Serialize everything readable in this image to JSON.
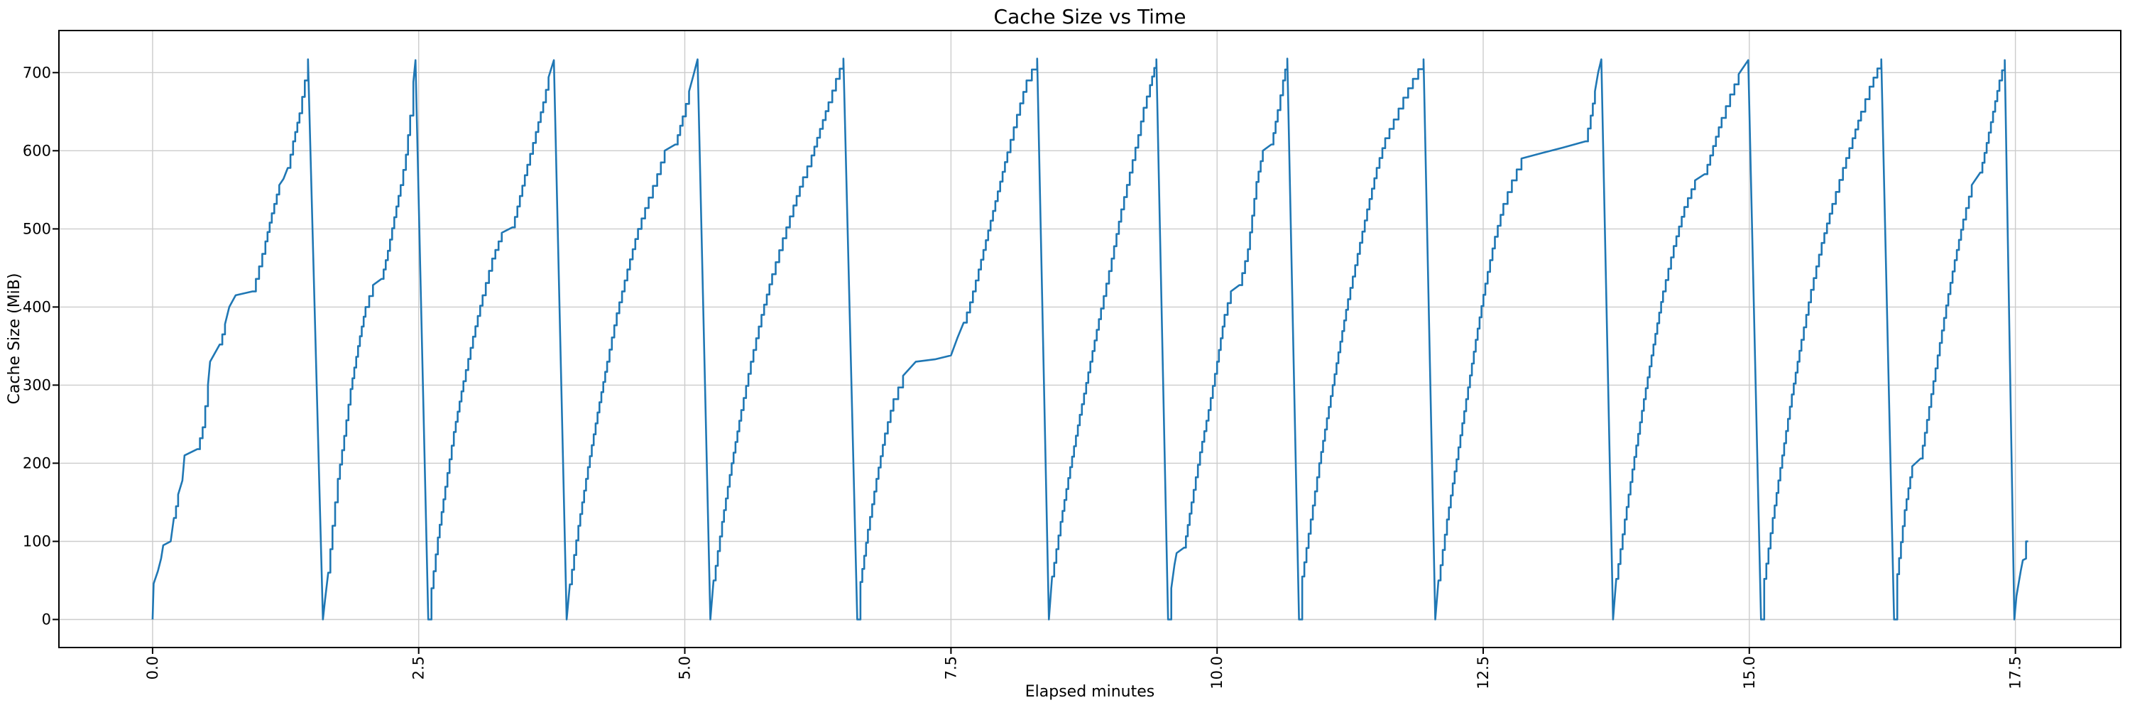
{
  "figure": {
    "title": "Cache Size vs Time",
    "xlabel": "Elapsed minutes",
    "ylabel": "Cache Size (MiB)"
  },
  "chart_data": {
    "type": "line",
    "title": "Cache Size vs Time",
    "xlabel": "Elapsed minutes",
    "ylabel": "Cache Size (MiB)",
    "xlim": [
      -0.88,
      18.49
    ],
    "ylim": [
      -35.9,
      753.9
    ],
    "grid": true,
    "legend": false,
    "line_color": "#1f77b4",
    "grid_color": "#cccccc",
    "spine_color": "#000000",
    "x_ticks": {
      "values": [
        0,
        2.5,
        5,
        7.5,
        10,
        12.5,
        15,
        17.5
      ],
      "labels": [
        "0.0",
        "2.5",
        "5.0",
        "7.5",
        "10.0",
        "12.5",
        "15.0",
        "17.5"
      ]
    },
    "y_ticks": {
      "values": [
        0,
        100,
        200,
        300,
        400,
        500,
        600,
        700
      ],
      "labels": [
        "0",
        "100",
        "200",
        "300",
        "400",
        "500",
        "600",
        "700"
      ]
    },
    "peak_value_mib": 717,
    "peaks_minutes": [
      1.46,
      2.47,
      3.77,
      5.12,
      6.49,
      8.31,
      9.43,
      10.66,
      11.94,
      13.61,
      14.99,
      16.24,
      17.4
    ],
    "notable_plateaus": [
      {
        "start": 7.17,
        "end": 7.5,
        "level": 332
      },
      {
        "start": 12.86,
        "end": 13.46,
        "level": 600
      }
    ],
    "series": [
      {
        "name": "Cache Size",
        "color": "#1f77b4",
        "points": [
          [
            0.0,
            0
          ],
          [
            0.01,
            46
          ],
          [
            0.05,
            62
          ],
          [
            0.08,
            78
          ],
          [
            0.1,
            95
          ],
          [
            0.17,
            100
          ],
          [
            0.2,
            130
          ],
          [
            0.24,
            160
          ],
          [
            0.28,
            178
          ],
          [
            0.3,
            210
          ],
          [
            0.42,
            218
          ],
          [
            0.47,
            246
          ],
          [
            0.52,
            300
          ],
          [
            0.54,
            330
          ],
          [
            0.63,
            352
          ],
          [
            0.68,
            378
          ],
          [
            0.72,
            400
          ],
          [
            0.78,
            415
          ],
          [
            0.94,
            420
          ],
          [
            1.0,
            452
          ],
          [
            1.06,
            484
          ],
          [
            1.12,
            520
          ],
          [
            1.19,
            556
          ],
          [
            1.23,
            564
          ],
          [
            1.27,
            578
          ],
          [
            1.32,
            612
          ],
          [
            1.38,
            648
          ],
          [
            1.43,
            690
          ],
          [
            1.46,
            717
          ],
          [
            1.6,
            0
          ],
          [
            1.62,
            25
          ],
          [
            1.65,
            60
          ],
          [
            1.69,
            120
          ],
          [
            1.74,
            180
          ],
          [
            1.8,
            235
          ],
          [
            1.86,
            295
          ],
          [
            1.93,
            350
          ],
          [
            2.0,
            400
          ],
          [
            2.07,
            428
          ],
          [
            2.15,
            436
          ],
          [
            2.21,
            472
          ],
          [
            2.27,
            515
          ],
          [
            2.33,
            556
          ],
          [
            2.38,
            595
          ],
          [
            2.42,
            645
          ],
          [
            2.45,
            688
          ],
          [
            2.47,
            716
          ],
          [
            2.59,
            0
          ],
          [
            2.62,
            40
          ],
          [
            2.68,
            105
          ],
          [
            2.75,
            170
          ],
          [
            2.83,
            240
          ],
          [
            2.92,
            305
          ],
          [
            3.01,
            362
          ],
          [
            3.1,
            415
          ],
          [
            3.19,
            462
          ],
          [
            3.28,
            495
          ],
          [
            3.38,
            502
          ],
          [
            3.45,
            542
          ],
          [
            3.52,
            582
          ],
          [
            3.6,
            624
          ],
          [
            3.67,
            662
          ],
          [
            3.72,
            694
          ],
          [
            3.77,
            716
          ],
          [
            3.89,
            0
          ],
          [
            3.92,
            45
          ],
          [
            4.0,
            120
          ],
          [
            4.09,
            195
          ],
          [
            4.18,
            265
          ],
          [
            4.27,
            330
          ],
          [
            4.36,
            392
          ],
          [
            4.46,
            448
          ],
          [
            4.56,
            500
          ],
          [
            4.66,
            540
          ],
          [
            4.74,
            570
          ],
          [
            4.81,
            600
          ],
          [
            4.91,
            608
          ],
          [
            4.98,
            644
          ],
          [
            5.04,
            676
          ],
          [
            5.08,
            696
          ],
          [
            5.12,
            717
          ],
          [
            5.24,
            0
          ],
          [
            5.27,
            50
          ],
          [
            5.35,
            125
          ],
          [
            5.44,
            200
          ],
          [
            5.53,
            268
          ],
          [
            5.62,
            330
          ],
          [
            5.72,
            390
          ],
          [
            5.82,
            442
          ],
          [
            5.92,
            488
          ],
          [
            6.02,
            530
          ],
          [
            6.11,
            566
          ],
          [
            6.19,
            594
          ],
          [
            6.27,
            628
          ],
          [
            6.35,
            662
          ],
          [
            6.42,
            692
          ],
          [
            6.49,
            718
          ],
          [
            6.62,
            0
          ],
          [
            6.65,
            48
          ],
          [
            6.72,
            115
          ],
          [
            6.8,
            180
          ],
          [
            6.88,
            238
          ],
          [
            6.96,
            282
          ],
          [
            7.05,
            312
          ],
          [
            7.17,
            330
          ],
          [
            7.35,
            333
          ],
          [
            7.5,
            338
          ],
          [
            7.56,
            360
          ],
          [
            7.62,
            380
          ],
          [
            7.68,
            406
          ],
          [
            7.76,
            448
          ],
          [
            7.85,
            498
          ],
          [
            7.94,
            548
          ],
          [
            8.03,
            598
          ],
          [
            8.12,
            646
          ],
          [
            8.21,
            690
          ],
          [
            8.31,
            718
          ],
          [
            8.42,
            0
          ],
          [
            8.45,
            55
          ],
          [
            8.53,
            125
          ],
          [
            8.62,
            195
          ],
          [
            8.71,
            262
          ],
          [
            8.81,
            330
          ],
          [
            8.91,
            398
          ],
          [
            9.01,
            462
          ],
          [
            9.1,
            525
          ],
          [
            9.18,
            572
          ],
          [
            9.26,
            620
          ],
          [
            9.31,
            655
          ],
          [
            9.37,
            684
          ],
          [
            9.43,
            717
          ],
          [
            9.54,
            0
          ],
          [
            9.57,
            40
          ],
          [
            9.6,
            70
          ],
          [
            9.62,
            85
          ],
          [
            9.69,
            92
          ],
          [
            9.76,
            150
          ],
          [
            9.84,
            214
          ],
          [
            9.92,
            268
          ],
          [
            10.0,
            330
          ],
          [
            10.07,
            390
          ],
          [
            10.13,
            420
          ],
          [
            10.21,
            428
          ],
          [
            10.29,
            474
          ],
          [
            10.37,
            560
          ],
          [
            10.43,
            600
          ],
          [
            10.51,
            608
          ],
          [
            10.57,
            652
          ],
          [
            10.62,
            690
          ],
          [
            10.66,
            718
          ],
          [
            10.77,
            0
          ],
          [
            10.8,
            55
          ],
          [
            10.88,
            128
          ],
          [
            10.96,
            200
          ],
          [
            11.05,
            272
          ],
          [
            11.14,
            342
          ],
          [
            11.23,
            410
          ],
          [
            11.32,
            468
          ],
          [
            11.41,
            525
          ],
          [
            11.5,
            578
          ],
          [
            11.58,
            616
          ],
          [
            11.66,
            640
          ],
          [
            11.75,
            668
          ],
          [
            11.84,
            692
          ],
          [
            11.94,
            717
          ],
          [
            12.05,
            0
          ],
          [
            12.08,
            50
          ],
          [
            12.16,
            128
          ],
          [
            12.25,
            205
          ],
          [
            12.34,
            282
          ],
          [
            12.43,
            358
          ],
          [
            12.52,
            430
          ],
          [
            12.61,
            490
          ],
          [
            12.69,
            532
          ],
          [
            12.77,
            562
          ],
          [
            12.86,
            590
          ],
          [
            13.05,
            597
          ],
          [
            13.25,
            604
          ],
          [
            13.46,
            612
          ],
          [
            13.51,
            645
          ],
          [
            13.55,
            676
          ],
          [
            13.58,
            700
          ],
          [
            13.61,
            717
          ],
          [
            13.72,
            0
          ],
          [
            13.75,
            52
          ],
          [
            13.83,
            128
          ],
          [
            13.92,
            208
          ],
          [
            14.01,
            282
          ],
          [
            14.1,
            352
          ],
          [
            14.19,
            420
          ],
          [
            14.29,
            478
          ],
          [
            14.39,
            528
          ],
          [
            14.49,
            562
          ],
          [
            14.58,
            570
          ],
          [
            14.66,
            606
          ],
          [
            14.74,
            642
          ],
          [
            14.82,
            672
          ],
          [
            14.9,
            698
          ],
          [
            14.99,
            716
          ],
          [
            15.11,
            0
          ],
          [
            15.14,
            52
          ],
          [
            15.22,
            130
          ],
          [
            15.31,
            210
          ],
          [
            15.4,
            288
          ],
          [
            15.49,
            358
          ],
          [
            15.58,
            422
          ],
          [
            15.68,
            482
          ],
          [
            15.78,
            532
          ],
          [
            15.88,
            578
          ],
          [
            15.97,
            616
          ],
          [
            16.05,
            650
          ],
          [
            16.13,
            682
          ],
          [
            16.24,
            717
          ],
          [
            16.36,
            0
          ],
          [
            16.39,
            58
          ],
          [
            16.46,
            140
          ],
          [
            16.53,
            196
          ],
          [
            16.61,
            206
          ],
          [
            16.69,
            272
          ],
          [
            16.77,
            338
          ],
          [
            16.85,
            402
          ],
          [
            16.93,
            460
          ],
          [
            17.01,
            512
          ],
          [
            17.09,
            556
          ],
          [
            17.17,
            572
          ],
          [
            17.23,
            610
          ],
          [
            17.29,
            650
          ],
          [
            17.35,
            690
          ],
          [
            17.4,
            716
          ],
          [
            17.49,
            0
          ],
          [
            17.51,
            30
          ],
          [
            17.53,
            46
          ],
          [
            17.55,
            62
          ],
          [
            17.57,
            76
          ],
          [
            17.6,
            78
          ],
          [
            17.6,
            100
          ],
          [
            17.62,
            100
          ]
        ]
      }
    ]
  }
}
